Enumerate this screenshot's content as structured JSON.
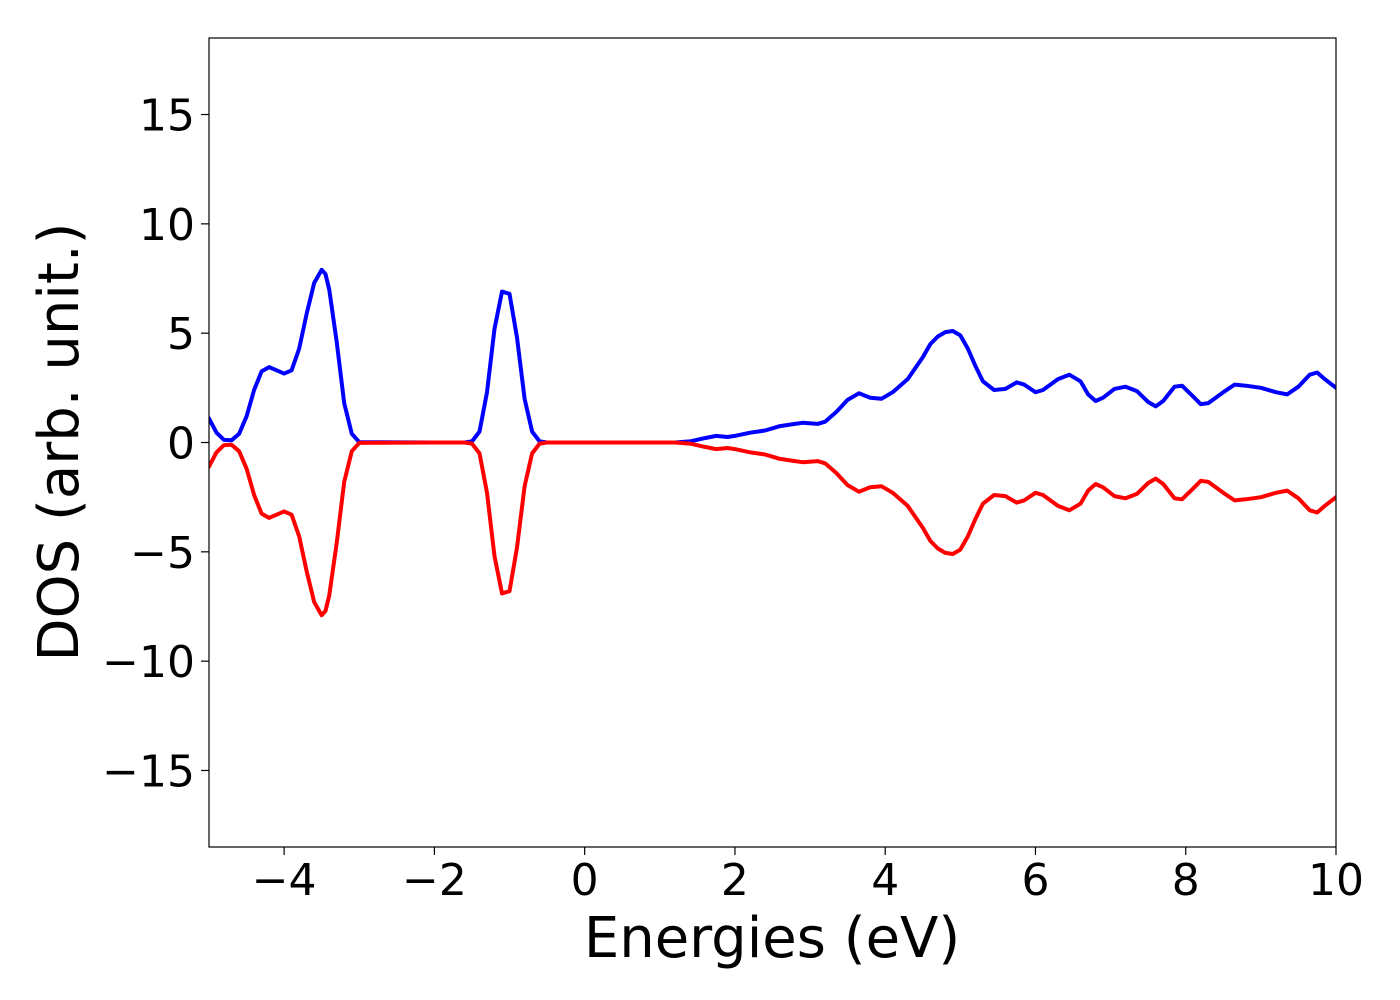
{
  "chart_data": {
    "type": "line",
    "title": "",
    "xlabel": "Energies (eV)",
    "ylabel": "DOS (arb. unit.)",
    "xlim": [
      -5,
      10
    ],
    "ylim": [
      -18.5,
      18.5
    ],
    "xticks": [
      -4,
      -2,
      0,
      2,
      4,
      6,
      8,
      10
    ],
    "yticks": [
      -15,
      -10,
      -5,
      0,
      5,
      10,
      15
    ],
    "xtick_labels": [
      "−4",
      "−2",
      "0",
      "2",
      "4",
      "6",
      "8",
      "10"
    ],
    "ytick_labels": [
      "−15",
      "−10",
      "−5",
      "0",
      "5",
      "10",
      "15"
    ],
    "grid": false,
    "legend": "none",
    "series": [
      {
        "color": "#0000ff",
        "points": [
          [
            -5.0,
            1.1
          ],
          [
            -4.9,
            0.45
          ],
          [
            -4.8,
            0.12
          ],
          [
            -4.7,
            0.1
          ],
          [
            -4.6,
            0.4
          ],
          [
            -4.5,
            1.2
          ],
          [
            -4.4,
            2.4
          ],
          [
            -4.3,
            3.25
          ],
          [
            -4.2,
            3.45
          ],
          [
            -4.1,
            3.3
          ],
          [
            -4.0,
            3.15
          ],
          [
            -3.9,
            3.3
          ],
          [
            -3.8,
            4.3
          ],
          [
            -3.7,
            5.9
          ],
          [
            -3.6,
            7.3
          ],
          [
            -3.5,
            7.9
          ],
          [
            -3.45,
            7.7
          ],
          [
            -3.4,
            7.0
          ],
          [
            -3.3,
            4.6
          ],
          [
            -3.2,
            1.8
          ],
          [
            -3.1,
            0.4
          ],
          [
            -3.0,
            0.02
          ],
          [
            -2.0,
            0.0
          ],
          [
            -1.6,
            0.0
          ],
          [
            -1.5,
            0.05
          ],
          [
            -1.4,
            0.5
          ],
          [
            -1.3,
            2.3
          ],
          [
            -1.2,
            5.2
          ],
          [
            -1.1,
            6.9
          ],
          [
            -1.0,
            6.8
          ],
          [
            -0.9,
            4.8
          ],
          [
            -0.8,
            2.0
          ],
          [
            -0.7,
            0.5
          ],
          [
            -0.6,
            0.05
          ],
          [
            -0.5,
            0.0
          ],
          [
            1.2,
            0.0
          ],
          [
            1.4,
            0.05
          ],
          [
            1.6,
            0.2
          ],
          [
            1.75,
            0.3
          ],
          [
            1.9,
            0.25
          ],
          [
            2.0,
            0.3
          ],
          [
            2.2,
            0.45
          ],
          [
            2.4,
            0.55
          ],
          [
            2.5,
            0.65
          ],
          [
            2.6,
            0.75
          ],
          [
            2.8,
            0.85
          ],
          [
            2.9,
            0.9
          ],
          [
            3.1,
            0.85
          ],
          [
            3.2,
            0.95
          ],
          [
            3.35,
            1.4
          ],
          [
            3.5,
            1.95
          ],
          [
            3.65,
            2.25
          ],
          [
            3.8,
            2.05
          ],
          [
            3.95,
            2.0
          ],
          [
            4.1,
            2.3
          ],
          [
            4.3,
            2.9
          ],
          [
            4.5,
            3.9
          ],
          [
            4.6,
            4.5
          ],
          [
            4.7,
            4.85
          ],
          [
            4.8,
            5.05
          ],
          [
            4.9,
            5.1
          ],
          [
            5.0,
            4.9
          ],
          [
            5.1,
            4.3
          ],
          [
            5.2,
            3.5
          ],
          [
            5.3,
            2.8
          ],
          [
            5.45,
            2.4
          ],
          [
            5.6,
            2.45
          ],
          [
            5.75,
            2.75
          ],
          [
            5.85,
            2.65
          ],
          [
            6.0,
            2.3
          ],
          [
            6.1,
            2.4
          ],
          [
            6.3,
            2.9
          ],
          [
            6.45,
            3.1
          ],
          [
            6.6,
            2.8
          ],
          [
            6.7,
            2.2
          ],
          [
            6.8,
            1.9
          ],
          [
            6.9,
            2.05
          ],
          [
            7.05,
            2.45
          ],
          [
            7.2,
            2.55
          ],
          [
            7.35,
            2.35
          ],
          [
            7.5,
            1.85
          ],
          [
            7.6,
            1.65
          ],
          [
            7.7,
            1.9
          ],
          [
            7.85,
            2.55
          ],
          [
            7.95,
            2.6
          ],
          [
            8.1,
            2.1
          ],
          [
            8.2,
            1.75
          ],
          [
            8.3,
            1.8
          ],
          [
            8.5,
            2.3
          ],
          [
            8.65,
            2.65
          ],
          [
            8.8,
            2.6
          ],
          [
            9.0,
            2.5
          ],
          [
            9.2,
            2.3
          ],
          [
            9.35,
            2.2
          ],
          [
            9.5,
            2.55
          ],
          [
            9.65,
            3.1
          ],
          [
            9.75,
            3.2
          ],
          [
            9.85,
            2.9
          ],
          [
            10.0,
            2.5
          ]
        ]
      },
      {
        "color": "#ff0000",
        "points": [
          [
            -5.0,
            -1.1
          ],
          [
            -4.9,
            -0.45
          ],
          [
            -4.8,
            -0.12
          ],
          [
            -4.7,
            -0.1
          ],
          [
            -4.6,
            -0.4
          ],
          [
            -4.5,
            -1.2
          ],
          [
            -4.4,
            -2.4
          ],
          [
            -4.3,
            -3.25
          ],
          [
            -4.2,
            -3.45
          ],
          [
            -4.1,
            -3.3
          ],
          [
            -4.0,
            -3.15
          ],
          [
            -3.9,
            -3.3
          ],
          [
            -3.8,
            -4.3
          ],
          [
            -3.7,
            -5.9
          ],
          [
            -3.6,
            -7.3
          ],
          [
            -3.5,
            -7.9
          ],
          [
            -3.45,
            -7.7
          ],
          [
            -3.4,
            -7.0
          ],
          [
            -3.3,
            -4.6
          ],
          [
            -3.2,
            -1.8
          ],
          [
            -3.1,
            -0.4
          ],
          [
            -3.0,
            -0.02
          ],
          [
            -2.0,
            0.0
          ],
          [
            -1.6,
            0.0
          ],
          [
            -1.5,
            -0.05
          ],
          [
            -1.4,
            -0.5
          ],
          [
            -1.3,
            -2.3
          ],
          [
            -1.2,
            -5.2
          ],
          [
            -1.1,
            -6.9
          ],
          [
            -1.0,
            -6.8
          ],
          [
            -0.9,
            -4.8
          ],
          [
            -0.8,
            -2.0
          ],
          [
            -0.7,
            -0.5
          ],
          [
            -0.6,
            -0.05
          ],
          [
            -0.5,
            0.0
          ],
          [
            1.2,
            0.0
          ],
          [
            1.4,
            -0.05
          ],
          [
            1.6,
            -0.2
          ],
          [
            1.75,
            -0.3
          ],
          [
            1.9,
            -0.25
          ],
          [
            2.0,
            -0.3
          ],
          [
            2.2,
            -0.45
          ],
          [
            2.4,
            -0.55
          ],
          [
            2.5,
            -0.65
          ],
          [
            2.6,
            -0.75
          ],
          [
            2.8,
            -0.85
          ],
          [
            2.9,
            -0.9
          ],
          [
            3.1,
            -0.85
          ],
          [
            3.2,
            -0.95
          ],
          [
            3.35,
            -1.4
          ],
          [
            3.5,
            -1.95
          ],
          [
            3.65,
            -2.25
          ],
          [
            3.8,
            -2.05
          ],
          [
            3.95,
            -2.0
          ],
          [
            4.1,
            -2.3
          ],
          [
            4.3,
            -2.9
          ],
          [
            4.5,
            -3.9
          ],
          [
            4.6,
            -4.5
          ],
          [
            4.7,
            -4.85
          ],
          [
            4.8,
            -5.05
          ],
          [
            4.9,
            -5.1
          ],
          [
            5.0,
            -4.9
          ],
          [
            5.1,
            -4.3
          ],
          [
            5.2,
            -3.5
          ],
          [
            5.3,
            -2.8
          ],
          [
            5.45,
            -2.4
          ],
          [
            5.6,
            -2.45
          ],
          [
            5.75,
            -2.75
          ],
          [
            5.85,
            -2.65
          ],
          [
            6.0,
            -2.3
          ],
          [
            6.1,
            -2.4
          ],
          [
            6.3,
            -2.9
          ],
          [
            6.45,
            -3.1
          ],
          [
            6.6,
            -2.8
          ],
          [
            6.7,
            -2.2
          ],
          [
            6.8,
            -1.9
          ],
          [
            6.9,
            -2.05
          ],
          [
            7.05,
            -2.45
          ],
          [
            7.2,
            -2.55
          ],
          [
            7.35,
            -2.35
          ],
          [
            7.5,
            -1.85
          ],
          [
            7.6,
            -1.65
          ],
          [
            7.7,
            -1.9
          ],
          [
            7.85,
            -2.55
          ],
          [
            7.95,
            -2.6
          ],
          [
            8.1,
            -2.1
          ],
          [
            8.2,
            -1.75
          ],
          [
            8.3,
            -1.8
          ],
          [
            8.5,
            -2.3
          ],
          [
            8.65,
            -2.65
          ],
          [
            8.8,
            -2.6
          ],
          [
            9.0,
            -2.5
          ],
          [
            9.2,
            -2.3
          ],
          [
            9.35,
            -2.2
          ],
          [
            9.5,
            -2.55
          ],
          [
            9.65,
            -3.1
          ],
          [
            9.75,
            -3.2
          ],
          [
            9.85,
            -2.9
          ],
          [
            10.0,
            -2.5
          ]
        ]
      }
    ]
  }
}
